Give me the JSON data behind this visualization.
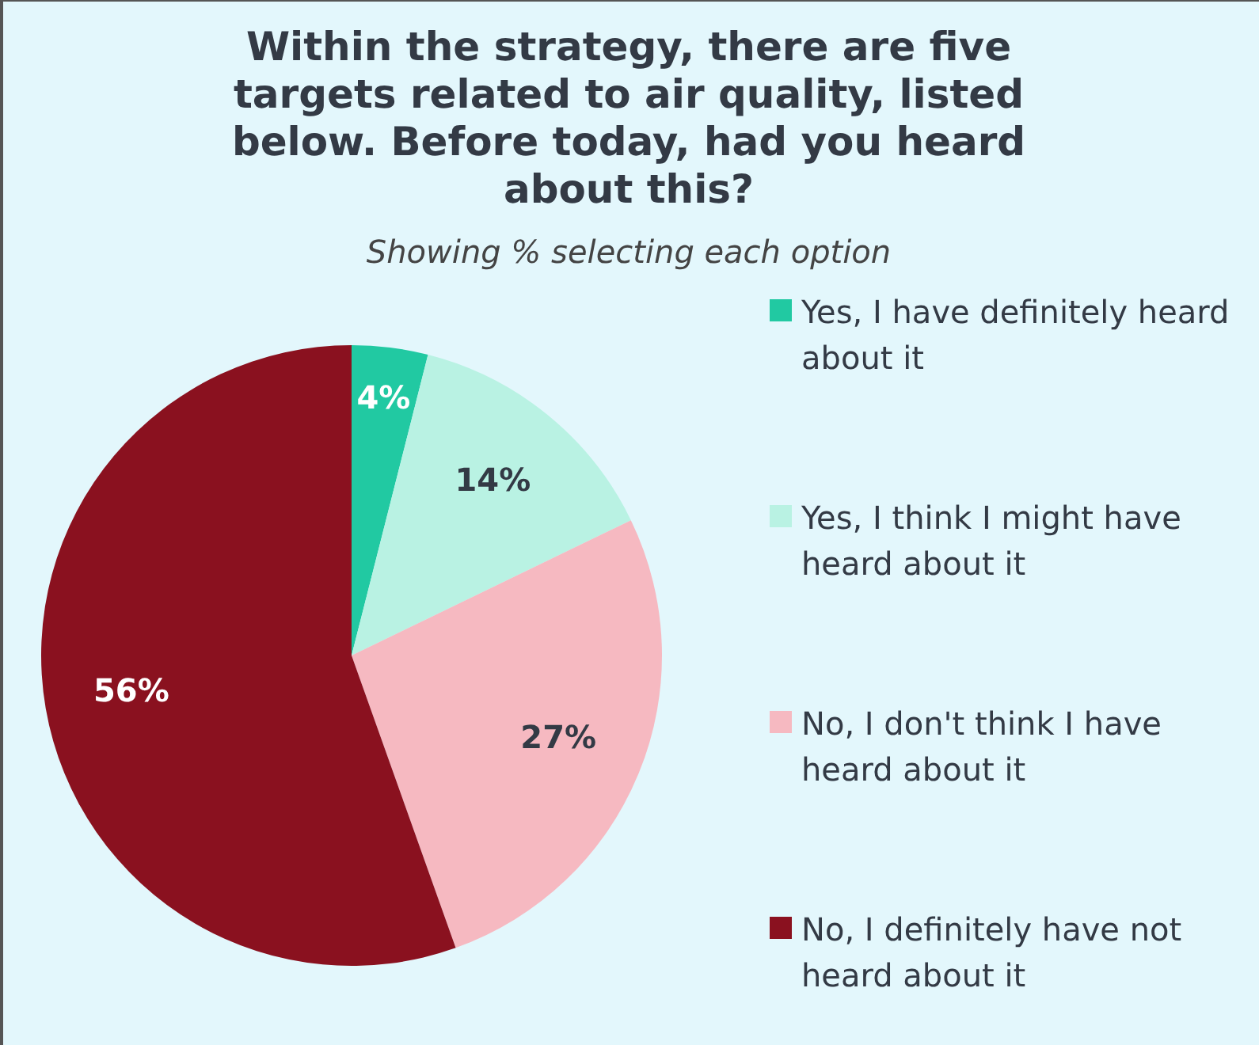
{
  "chart_data": {
    "type": "pie",
    "title": "Within the strategy, there are five targets related to air quality, listed below. Before today, had you heard about this?",
    "subtitle": "Showing % selecting each option",
    "categories": [
      "Yes, I have definitely heard about it",
      "Yes, I think I might have heard about it",
      "No, I don't think I have heard about it",
      "No, I definitely have not heard about it"
    ],
    "values": [
      4,
      14,
      27,
      56
    ],
    "colors": [
      "#21c9a2",
      "#b9f2e3",
      "#f6b9c1",
      "#8a111f"
    ],
    "value_labels": [
      "4%",
      "14%",
      "27%",
      "56%"
    ],
    "legend": "right"
  }
}
